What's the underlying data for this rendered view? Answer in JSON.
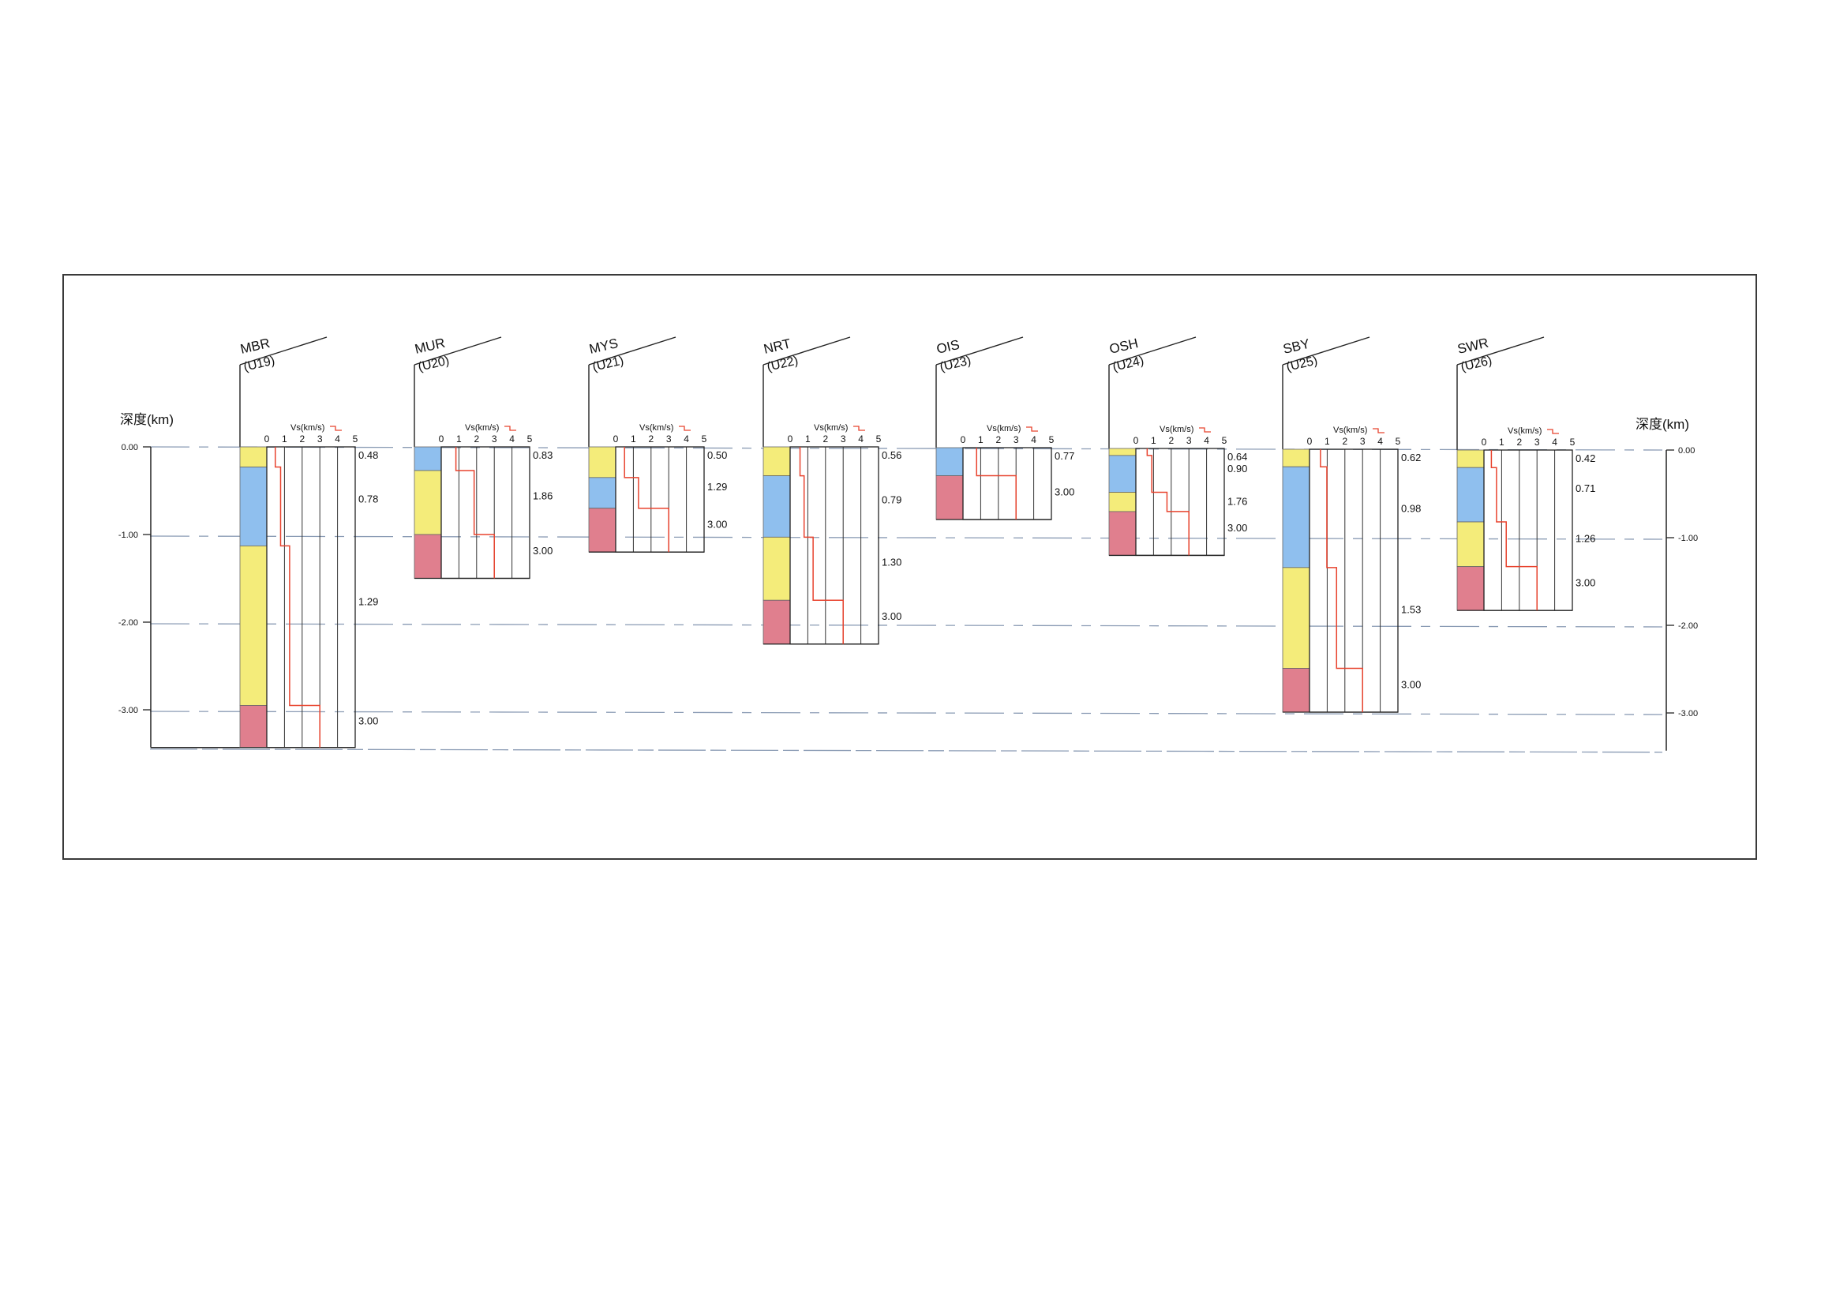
{
  "axis": {
    "label": "深度(km)",
    "ticks": [
      {
        "depth": 0,
        "label": "0.00"
      },
      {
        "depth": 1,
        "label": "-1.00"
      },
      {
        "depth": 2,
        "label": "-2.00"
      },
      {
        "depth": 3,
        "label": "-3.00"
      }
    ]
  },
  "vs_axis": {
    "label": "Vs(km/s)",
    "ticks": [
      "0",
      "1",
      "2",
      "3",
      "4",
      "5"
    ],
    "max": 5
  },
  "layer_colors": {
    "yellow": "#f4ec7a",
    "blue": "#8fbfee",
    "pink": "#e07f8e"
  },
  "profile_color": "#e8432e",
  "stations": [
    {
      "code": "MBR",
      "id": "(U19)",
      "layers": [
        {
          "top": 0,
          "bottom": 0.23,
          "vs": 0.48,
          "vs_label": "0.48",
          "color": "yellow"
        },
        {
          "top": 0.23,
          "bottom": 1.13,
          "vs": 0.78,
          "vs_label": "0.78",
          "color": "blue"
        },
        {
          "top": 1.13,
          "bottom": 2.95,
          "vs": 1.29,
          "vs_label": "1.29",
          "color": "yellow"
        },
        {
          "top": 2.95,
          "bottom": 3.43,
          "vs": 3.0,
          "vs_label": "3.00",
          "color": "pink"
        }
      ]
    },
    {
      "code": "MUR",
      "id": "(U20)",
      "layers": [
        {
          "top": 0,
          "bottom": 0.27,
          "vs": 0.83,
          "vs_label": "0.83",
          "color": "blue"
        },
        {
          "top": 0.27,
          "bottom": 1.0,
          "vs": 1.86,
          "vs_label": "1.86",
          "color": "yellow"
        },
        {
          "top": 1.0,
          "bottom": 1.5,
          "vs": 3.0,
          "vs_label": "3.00",
          "color": "pink"
        }
      ]
    },
    {
      "code": "MYS",
      "id": "(U21)",
      "layers": [
        {
          "top": 0,
          "bottom": 0.35,
          "vs": 0.5,
          "vs_label": "0.50",
          "color": "yellow"
        },
        {
          "top": 0.35,
          "bottom": 0.7,
          "vs": 1.29,
          "vs_label": "1.29",
          "color": "blue"
        },
        {
          "top": 0.7,
          "bottom": 1.2,
          "vs": 3.0,
          "vs_label": "3.00",
          "color": "pink"
        }
      ]
    },
    {
      "code": "NRT",
      "id": "(U22)",
      "layers": [
        {
          "top": 0,
          "bottom": 0.33,
          "vs": 0.56,
          "vs_label": "0.56",
          "color": "yellow"
        },
        {
          "top": 0.33,
          "bottom": 1.03,
          "vs": 0.79,
          "vs_label": "0.79",
          "color": "blue"
        },
        {
          "top": 1.03,
          "bottom": 1.75,
          "vs": 1.3,
          "vs_label": "1.30",
          "color": "yellow"
        },
        {
          "top": 1.75,
          "bottom": 2.25,
          "vs": 3.0,
          "vs_label": "3.00",
          "color": "pink"
        }
      ]
    },
    {
      "code": "OIS",
      "id": "(U23)",
      "layers": [
        {
          "top": 0,
          "bottom": 0.32,
          "vs": 0.77,
          "vs_label": "0.77",
          "color": "blue"
        },
        {
          "top": 0.32,
          "bottom": 0.82,
          "vs": 3.0,
          "vs_label": "3.00",
          "color": "pink"
        }
      ]
    },
    {
      "code": "OSH",
      "id": "(U24)",
      "layers": [
        {
          "top": 0,
          "bottom": 0.08,
          "vs": 0.64,
          "vs_label": "0.64",
          "color": "yellow"
        },
        {
          "top": 0.08,
          "bottom": 0.5,
          "vs": 0.9,
          "vs_label": "0.90",
          "color": "blue"
        },
        {
          "top": 0.5,
          "bottom": 0.72,
          "vs": 1.76,
          "vs_label": "1.76",
          "color": "yellow"
        },
        {
          "top": 0.72,
          "bottom": 1.22,
          "vs": 3.0,
          "vs_label": "3.00",
          "color": "pink"
        }
      ]
    },
    {
      "code": "SBY",
      "id": "(U25)",
      "layers": [
        {
          "top": 0,
          "bottom": 0.2,
          "vs": 0.62,
          "vs_label": "0.62",
          "color": "yellow"
        },
        {
          "top": 0.2,
          "bottom": 1.35,
          "vs": 0.98,
          "vs_label": "0.98",
          "color": "blue"
        },
        {
          "top": 1.35,
          "bottom": 2.5,
          "vs": 1.53,
          "vs_label": "1.53",
          "color": "yellow"
        },
        {
          "top": 2.5,
          "bottom": 3.0,
          "vs": 3.0,
          "vs_label": "3.00",
          "color": "pink"
        }
      ]
    },
    {
      "code": "SWR",
      "id": "(U26)",
      "layers": [
        {
          "top": 0,
          "bottom": 0.2,
          "vs": 0.42,
          "vs_label": "0.42",
          "color": "yellow"
        },
        {
          "top": 0.2,
          "bottom": 0.82,
          "vs": 0.71,
          "vs_label": "0.71",
          "color": "blue"
        },
        {
          "top": 0.82,
          "bottom": 1.33,
          "vs": 1.26,
          "vs_label": "1.26",
          "color": "yellow"
        },
        {
          "top": 1.33,
          "bottom": 1.83,
          "vs": 3.0,
          "vs_label": "3.00",
          "color": "pink"
        }
      ]
    }
  ]
}
